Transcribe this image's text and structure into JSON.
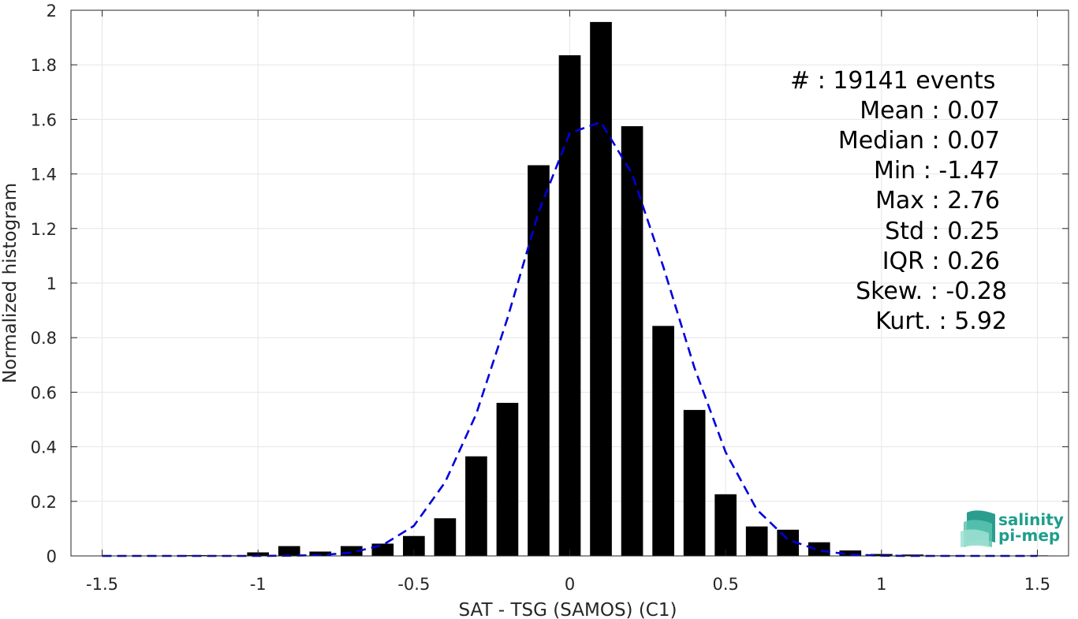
{
  "chart_data": {
    "type": "bar",
    "xlabel": "SAT - TSG (SAMOS) (C1)",
    "ylabel": "Normalized histogram",
    "xlim": [
      -1.6,
      1.6
    ],
    "ylim": [
      0,
      2
    ],
    "xticks": [
      -1.5,
      -1,
      -0.5,
      0,
      0.5,
      1,
      1.5
    ],
    "xtick_labels": [
      "-1.5",
      "-1",
      "-0.5",
      "0",
      "0.5",
      "1",
      "1.5"
    ],
    "yticks": [
      0,
      0.2,
      0.4,
      0.6,
      0.8,
      1,
      1.2,
      1.4,
      1.6,
      1.8,
      2
    ],
    "ytick_labels": [
      "0",
      "0.2",
      "0.4",
      "0.6",
      "0.8",
      "1",
      "1.2",
      "1.4",
      "1.6",
      "1.8",
      "2"
    ],
    "grid": true,
    "bar_width": 0.07,
    "bar_color": "#000000",
    "bars": {
      "x": [
        -1.5,
        -1.4,
        -1.3,
        -1.2,
        -1.1,
        -1.0,
        -0.9,
        -0.8,
        -0.7,
        -0.6,
        -0.5,
        -0.4,
        -0.3,
        -0.2,
        -0.1,
        0.0,
        0.1,
        0.2,
        0.3,
        0.4,
        0.5,
        0.6,
        0.7,
        0.8,
        0.9,
        1.0,
        1.1,
        1.2,
        1.3,
        1.4,
        1.5
      ],
      "y": [
        0.001,
        0.001,
        0.001,
        0.003,
        0.002,
        0.013,
        0.036,
        0.016,
        0.036,
        0.045,
        0.073,
        0.138,
        0.365,
        0.561,
        1.432,
        1.835,
        1.957,
        1.575,
        0.843,
        0.535,
        0.226,
        0.108,
        0.096,
        0.05,
        0.02,
        0.007,
        0.005,
        0.002,
        0.001,
        0.001,
        0.002
      ]
    },
    "fit_curve": {
      "style": "dashed",
      "color": "#0000dd",
      "x": [
        -1.5,
        -1.4,
        -1.3,
        -1.2,
        -1.1,
        -1.0,
        -0.9,
        -0.8,
        -0.7,
        -0.6,
        -0.5,
        -0.4,
        -0.3,
        -0.2,
        -0.1,
        0.0,
        0.1,
        0.2,
        0.3,
        0.4,
        0.5,
        0.6,
        0.7,
        0.8,
        0.9,
        1.0,
        1.1,
        1.2,
        1.3,
        1.4,
        1.5
      ],
      "y": [
        0.0,
        0.0,
        0.0,
        0.0,
        0.0,
        0.0,
        0.001,
        0.003,
        0.012,
        0.04,
        0.11,
        0.27,
        0.52,
        0.87,
        1.26,
        1.55,
        1.59,
        1.4,
        1.06,
        0.69,
        0.38,
        0.17,
        0.06,
        0.02,
        0.005,
        0.001,
        0.0,
        0.0,
        0.0,
        0.0,
        0.0
      ]
    }
  },
  "stats": [
    {
      "label": "#  ",
      "value": ": 19141 events"
    },
    {
      "label": "Mean ",
      "value": ": 0.07"
    },
    {
      "label": "Median ",
      "value": ": 0.07"
    },
    {
      "label": "Min ",
      "value": ": -1.47"
    },
    {
      "label": "Max ",
      "value": ": 2.76"
    },
    {
      "label": "Std ",
      "value": ": 0.25"
    },
    {
      "label": "IQR ",
      "value": ": 0.26"
    },
    {
      "label": "Skew. ",
      "value": ": -0.28"
    },
    {
      "label": "Kurt. ",
      "value": ": 5.92"
    }
  ],
  "logo": {
    "line1": "salinity",
    "line2": "pi-mep"
  }
}
